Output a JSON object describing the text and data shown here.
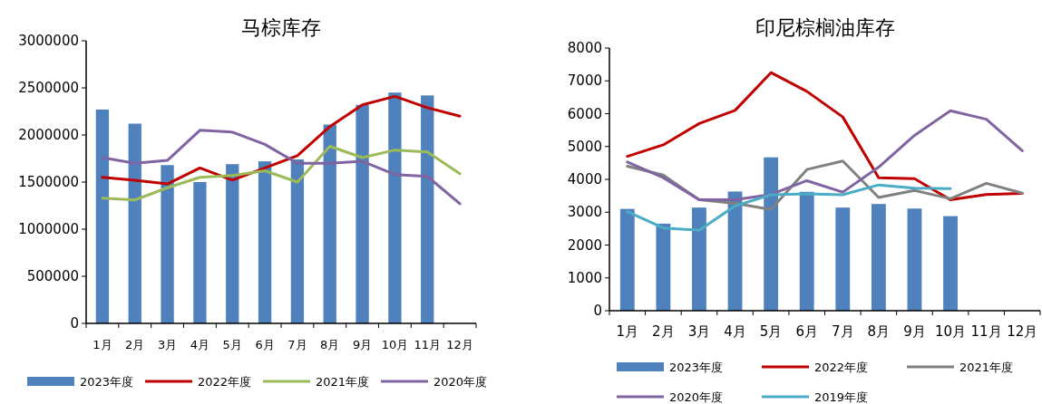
{
  "chart_data": [
    {
      "type": "bar",
      "title": "马棕库存",
      "categories": [
        "1月",
        "2月",
        "3月",
        "4月",
        "5月",
        "6月",
        "7月",
        "8月",
        "9月",
        "10月",
        "11月",
        "12月"
      ],
      "ylim": [
        0,
        3000000
      ],
      "yticks": [
        0,
        500000,
        1000000,
        1500000,
        2000000,
        2500000,
        3000000
      ],
      "grid": false,
      "legend": "bottom",
      "marker": "none",
      "series": [
        {
          "name": "2023年度",
          "color": "#4f81bd",
          "values": [
            2270000,
            2120000,
            1680000,
            1500000,
            1690000,
            1720000,
            1740000,
            2110000,
            2320000,
            2450000,
            2420000,
            null
          ]
        },
        {
          "name": "2022年度",
          "type": "line",
          "color": "#c00000",
          "values": [
            1550000,
            1520000,
            1480000,
            1650000,
            1520000,
            1650000,
            1780000,
            2090000,
            2320000,
            2410000,
            2290000,
            2200000
          ]
        },
        {
          "name": "2021年度",
          "type": "line",
          "color": "#9bbb59",
          "values": [
            1330000,
            1310000,
            1440000,
            1550000,
            1570000,
            1620000,
            1500000,
            1880000,
            1760000,
            1840000,
            1820000,
            1590000
          ]
        },
        {
          "name": "2020年度",
          "type": "line",
          "color": "#8064a2",
          "values": [
            1760000,
            1700000,
            1730000,
            2050000,
            2030000,
            1900000,
            1700000,
            1700000,
            1720000,
            1580000,
            1560000,
            1270000
          ]
        }
      ]
    },
    {
      "type": "bar",
      "title": "印尼棕榈油库存",
      "categories": [
        "1月",
        "2月",
        "3月",
        "4月",
        "5月",
        "6月",
        "7月",
        "8月",
        "9月",
        "10月",
        "11月",
        "12月"
      ],
      "ylim": [
        0,
        8000
      ],
      "yticks": [
        0,
        1000,
        2000,
        3000,
        4000,
        5000,
        6000,
        7000,
        8000
      ],
      "grid": false,
      "legend": "bottom",
      "marker": "none",
      "series": [
        {
          "name": "2023年度",
          "color": "#4f81bd",
          "values": [
            3100,
            2650,
            3140,
            3630,
            4670,
            3620,
            3140,
            3250,
            3110,
            2880,
            null,
            null
          ]
        },
        {
          "name": "2022年度",
          "type": "line",
          "color": "#c00000",
          "values": [
            4700,
            5050,
            5700,
            6100,
            7250,
            6680,
            5900,
            4050,
            4020,
            3380,
            3540,
            3570
          ]
        },
        {
          "name": "2021年度",
          "type": "line",
          "color": "#808080",
          "values": [
            4400,
            4130,
            3380,
            3270,
            3080,
            4300,
            4560,
            3450,
            3660,
            3410,
            3880,
            3580
          ]
        },
        {
          "name": "2020年度",
          "type": "line",
          "color": "#8064a2",
          "values": [
            4530,
            4050,
            3380,
            3380,
            3540,
            3960,
            3610,
            4370,
            5340,
            6090,
            5830,
            4870
          ]
        },
        {
          "name": "2019年度",
          "type": "line",
          "color": "#4bacc6",
          "values": [
            3020,
            2520,
            2450,
            3190,
            3530,
            3560,
            3530,
            3830,
            3730,
            3720,
            null,
            null
          ]
        }
      ]
    }
  ]
}
